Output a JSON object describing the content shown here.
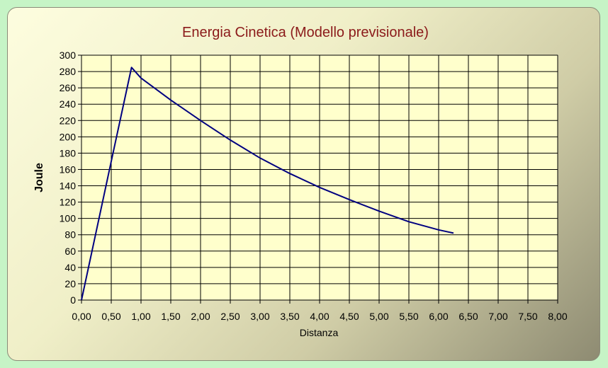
{
  "chart_data": {
    "type": "line",
    "title": "Energia Cinetica (Modello previsionale)",
    "xlabel": "Distanza",
    "ylabel": "Joule",
    "xlim": [
      0,
      8
    ],
    "ylim": [
      0,
      300
    ],
    "x_ticks": [
      "0,00",
      "0,50",
      "1,00",
      "1,50",
      "2,00",
      "2,50",
      "3,00",
      "3,50",
      "4,00",
      "4,50",
      "5,00",
      "5,50",
      "6,00",
      "6,50",
      "7,00",
      "7,50",
      "8,00"
    ],
    "y_ticks": [
      "0",
      "20",
      "40",
      "60",
      "80",
      "100",
      "120",
      "140",
      "160",
      "180",
      "200",
      "220",
      "240",
      "260",
      "280",
      "300"
    ],
    "grid": true,
    "legend": "none",
    "colors": {
      "line": "#000080",
      "plot_background": "#ffffcc",
      "grid": "#000000"
    },
    "series": [
      {
        "x": [
          0,
          0.5,
          0.84,
          1.0,
          1.5,
          2.0,
          2.5,
          3.0,
          3.5,
          4.0,
          4.5,
          5.0,
          5.5,
          6.0,
          6.25
        ],
        "y": [
          0,
          170,
          285,
          272,
          245,
          220,
          196,
          174,
          155,
          138,
          123,
          109,
          96,
          86,
          82
        ]
      }
    ]
  }
}
